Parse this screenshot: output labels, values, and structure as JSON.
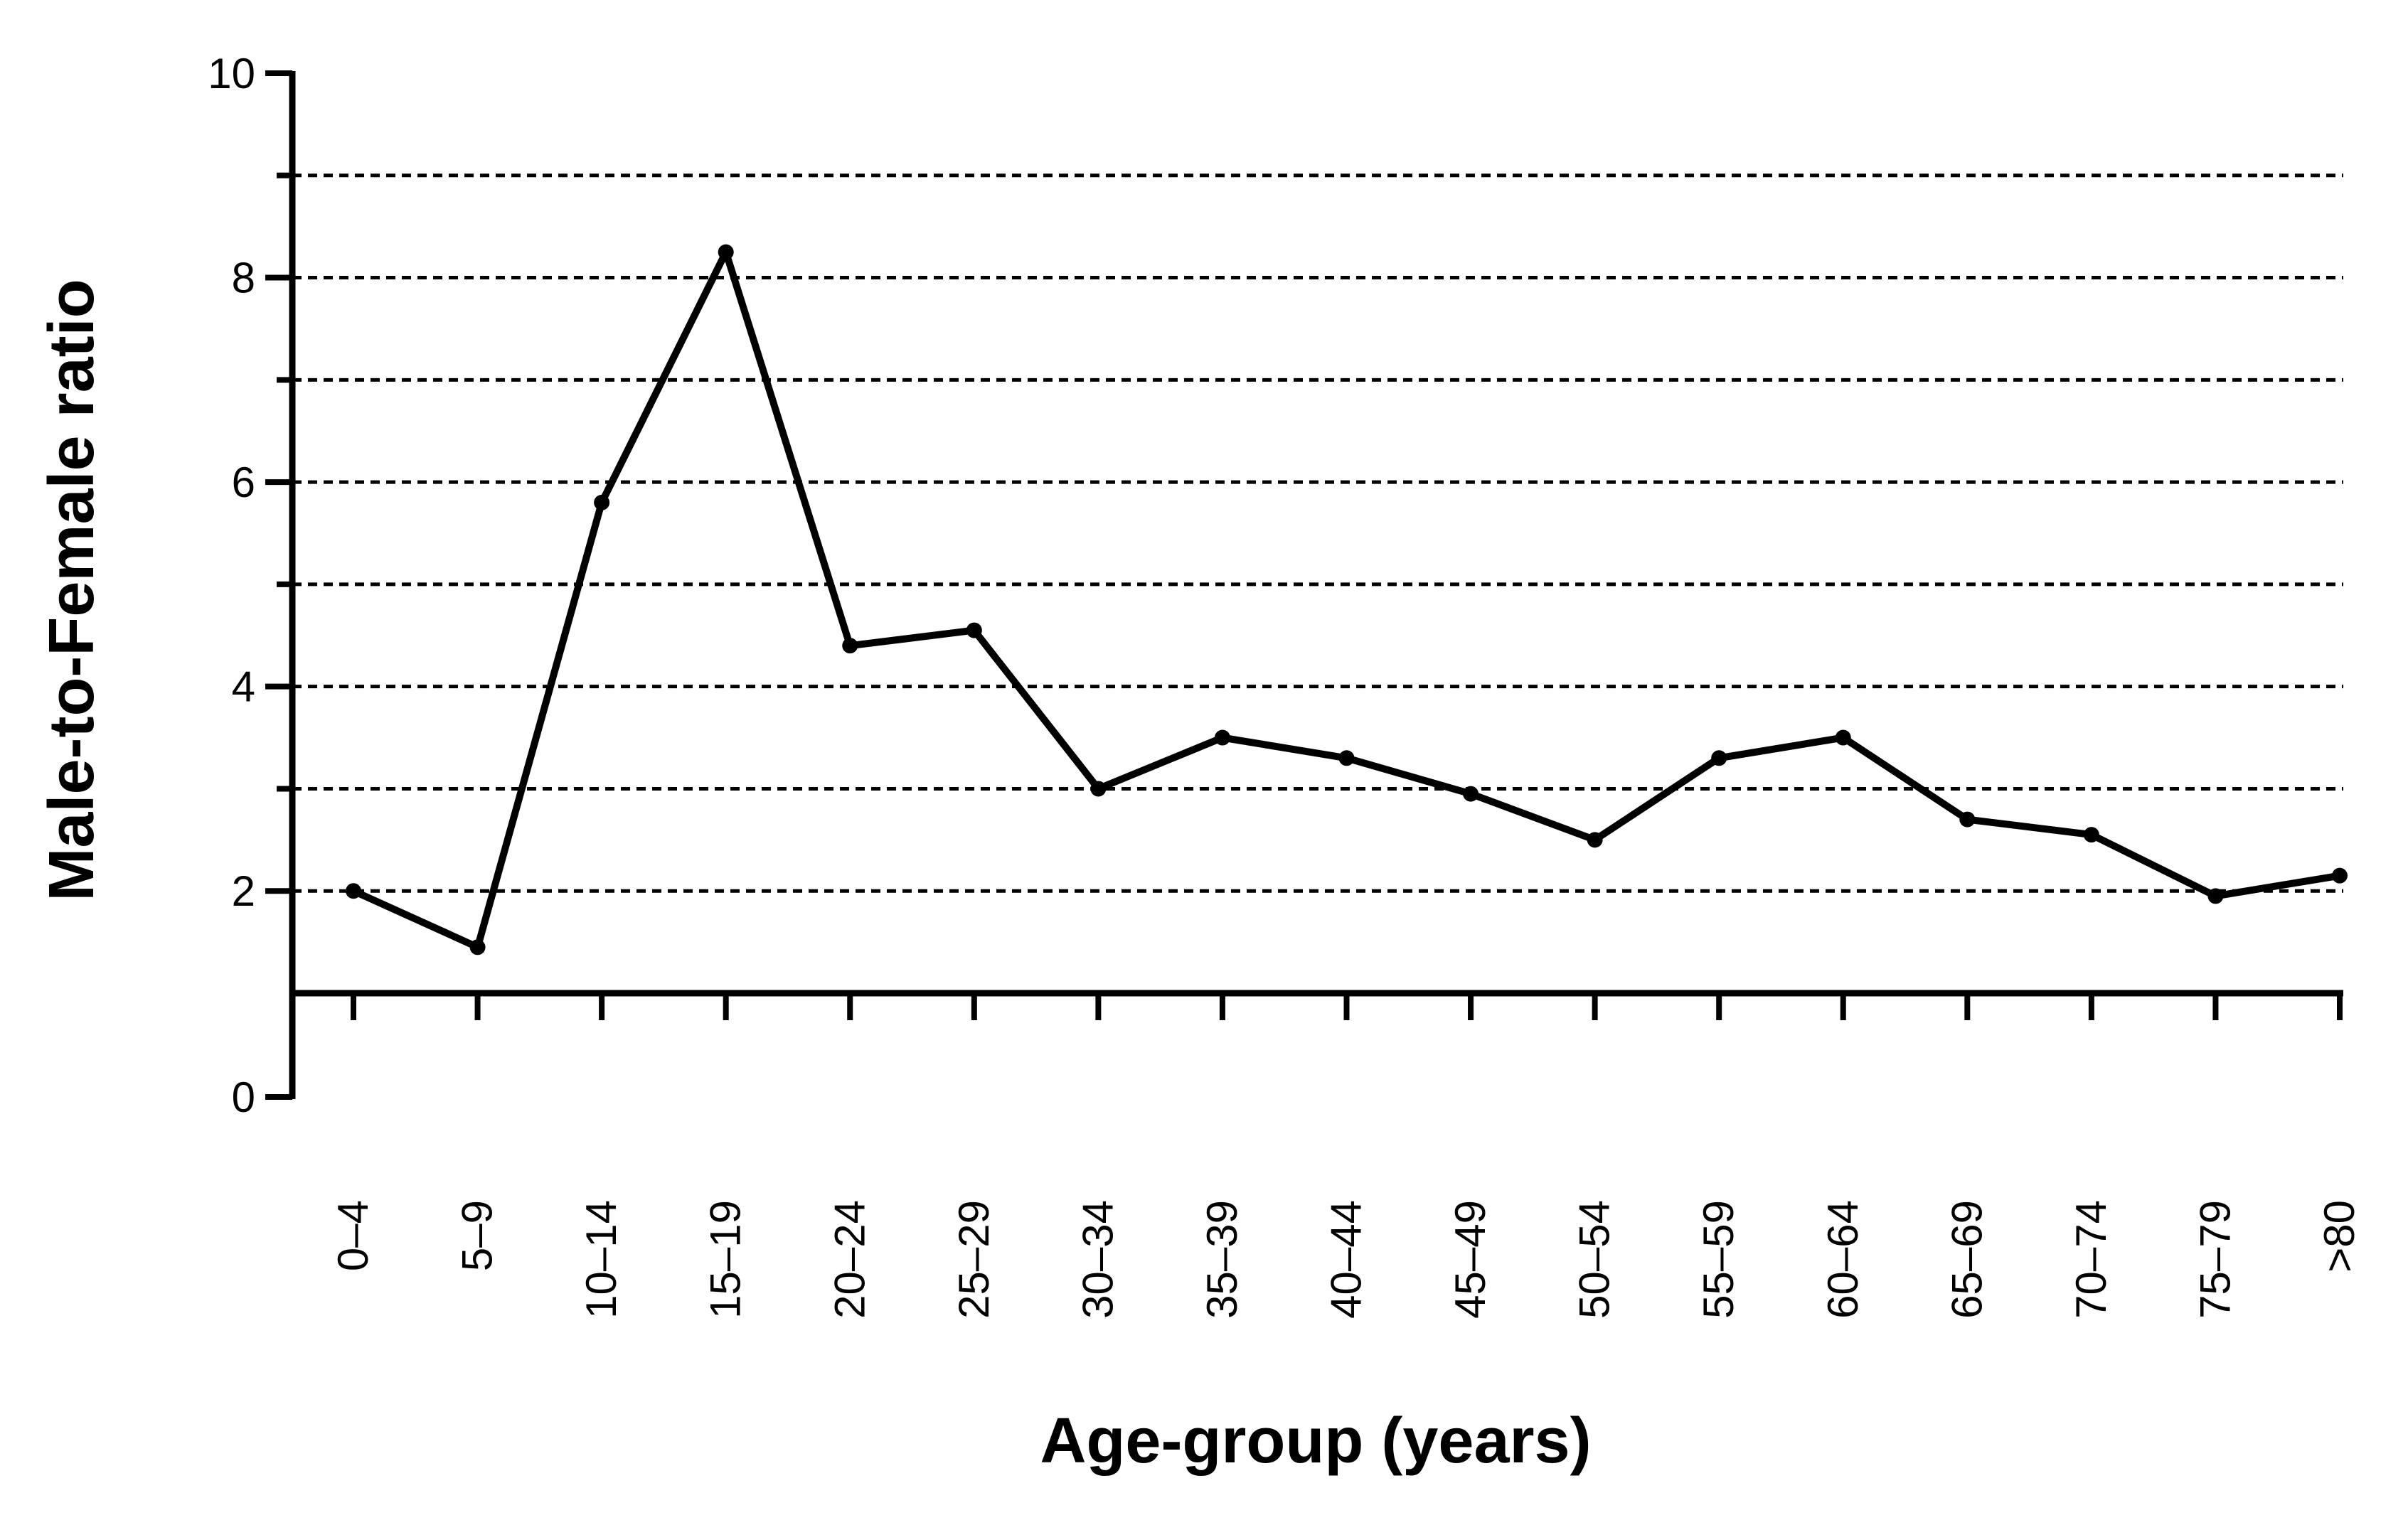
{
  "chart_data": {
    "type": "line",
    "title": "",
    "xlabel": "Age-group (years)",
    "ylabel": "Male-to-Female ratio",
    "categories": [
      "0–4",
      "5–9",
      "10–14",
      "15–19",
      "20–24",
      "25–29",
      "30–34",
      "35–39",
      "40–44",
      "45–49",
      "50–54",
      "55–59",
      "60–64",
      "65–69",
      "70–74",
      "75–79",
      ">80"
    ],
    "series": [
      {
        "values": [
          2.0,
          1.45,
          5.8,
          8.25,
          4.4,
          4.55,
          3.0,
          3.5,
          3.3,
          2.95,
          2.5,
          3.3,
          3.5,
          2.7,
          2.55,
          1.95,
          2.15
        ]
      }
    ],
    "ylim": [
      0,
      10
    ],
    "yticks": [
      "0",
      "2",
      "4",
      "6",
      "8",
      "10"
    ],
    "y_axis_break_at": 1,
    "grid": {
      "horizontal": true,
      "style": "dashed",
      "values": [
        2,
        3,
        4,
        5,
        6,
        7,
        8,
        9
      ]
    },
    "legend": "none",
    "colors": {
      "line": "#000000",
      "grid": "#000000",
      "background": "#ffffff"
    }
  }
}
